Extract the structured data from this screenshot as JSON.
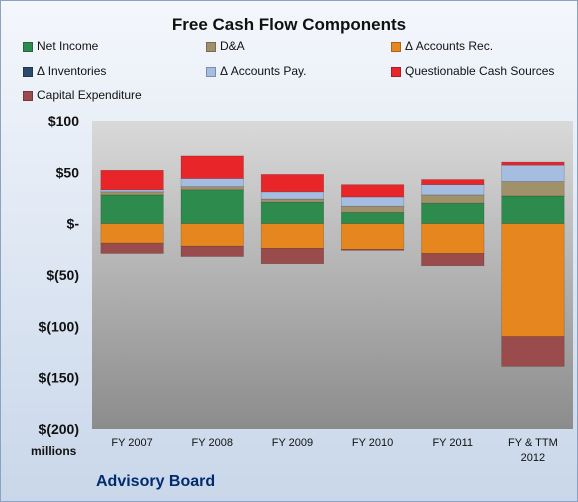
{
  "chart_data": {
    "type": "bar",
    "stacked": true,
    "title": "Free Cash Flow Components",
    "units_label": "millions",
    "footer": "Advisory Board",
    "categories": [
      "FY 2007",
      "FY 2008",
      "FY 2009",
      "FY 2010",
      "FY 2011",
      "FY & TTM 2012"
    ],
    "category_lines": [
      [
        "FY 2007"
      ],
      [
        "FY 2008"
      ],
      [
        "FY 2009"
      ],
      [
        "FY 2010"
      ],
      [
        "FY 2011"
      ],
      [
        "FY & TTM",
        "2012"
      ]
    ],
    "ylim": [
      -200,
      100
    ],
    "yticks": [
      100,
      50,
      0,
      -50,
      -100,
      -150,
      -200
    ],
    "ytick_labels": [
      "$100",
      "$50",
      "$-",
      "$(50)",
      "$(100)",
      "$(150)",
      "$(200)"
    ],
    "grid": false,
    "legend_placement": "top",
    "series": [
      {
        "name": "Net Income",
        "color": "#2e8b4e",
        "values": [
          28,
          33,
          21,
          11,
          20,
          27
        ]
      },
      {
        "name": "D&A",
        "color": "#a0916a",
        "values": [
          3,
          3,
          3,
          6,
          8,
          14
        ]
      },
      {
        "name": "Δ Accounts Rec.",
        "color": "#e6861f",
        "values": [
          -19,
          -22,
          -24,
          -25,
          -29,
          -110
        ]
      },
      {
        "name": "Δ Inventories",
        "color": "#2b4a6c",
        "values": [
          0,
          0,
          0,
          0,
          0,
          0
        ]
      },
      {
        "name": "Δ Accounts Pay.",
        "color": "#a4bde0",
        "values": [
          2,
          8,
          7,
          9,
          10,
          16
        ]
      },
      {
        "name": "Questionable Cash Sources",
        "color": "#e8262a",
        "values": [
          19,
          22,
          17,
          12,
          5,
          3
        ]
      },
      {
        "name": "Capital Expenditure",
        "color": "#9a4b4b",
        "values": [
          -10,
          -10,
          -15,
          -1,
          -12,
          -29
        ]
      }
    ]
  }
}
